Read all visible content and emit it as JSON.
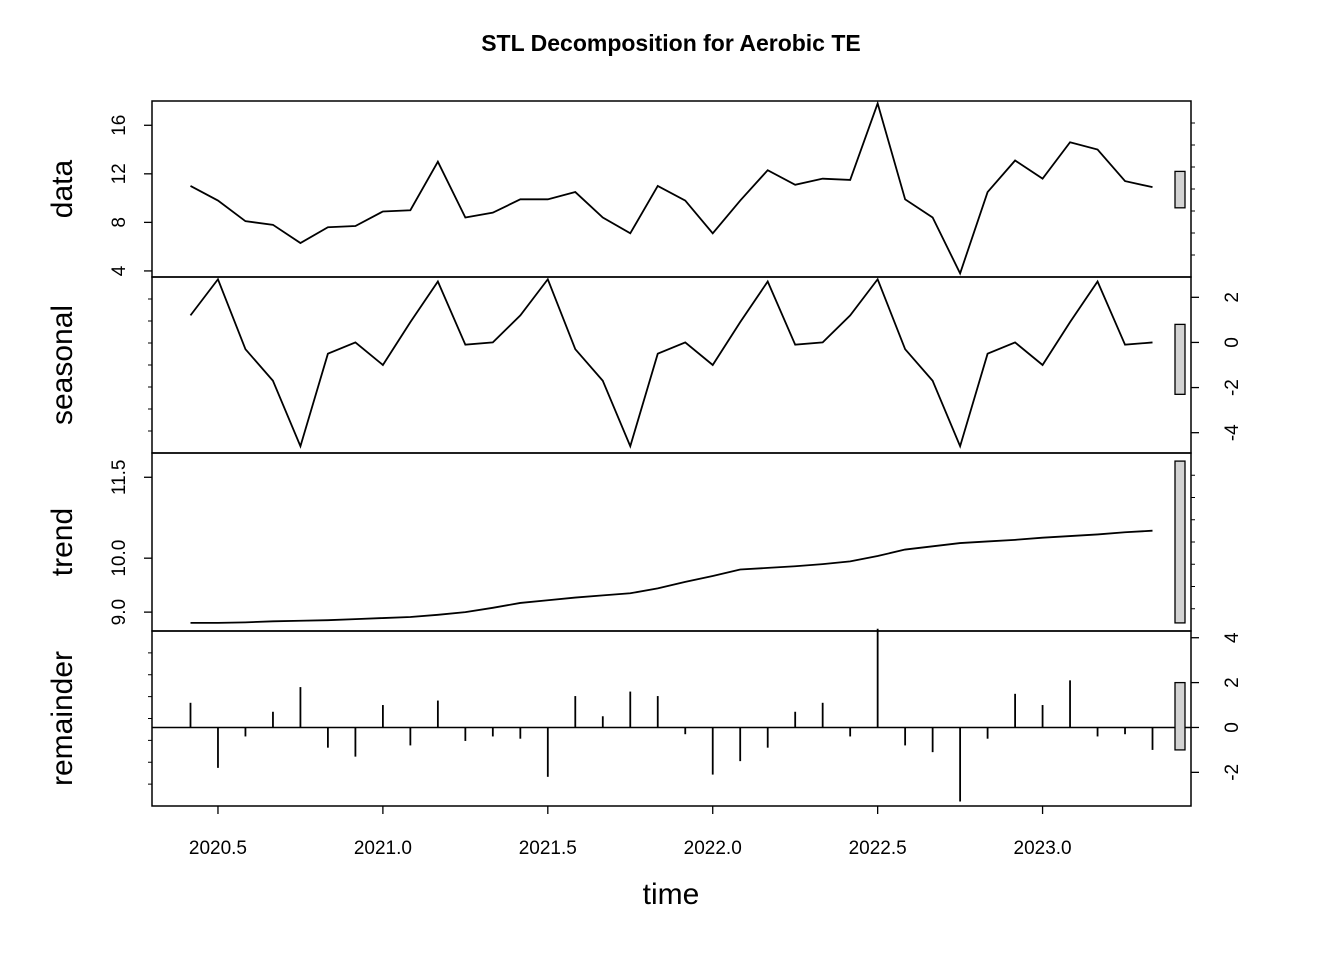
{
  "chart_data": {
    "type": "line",
    "title": "STL Decomposition for Aerobic TE",
    "xlabel": "time",
    "x_ticks": [
      "2020.5",
      "2021.0",
      "2021.5",
      "2022.0",
      "2022.5",
      "2023.0"
    ],
    "x_tick_values": [
      2020.5,
      2021.0,
      2021.5,
      2022.0,
      2022.5,
      2023.0
    ],
    "xlim": [
      2020.3,
      2023.45
    ],
    "x": [
      2020.4167,
      2020.5,
      2020.5833,
      2020.6667,
      2020.75,
      2020.8333,
      2020.9167,
      2021.0,
      2021.0833,
      2021.1667,
      2021.25,
      2021.3333,
      2021.4167,
      2021.5,
      2021.5833,
      2021.6667,
      2021.75,
      2021.8333,
      2021.9167,
      2022.0,
      2022.0833,
      2022.1667,
      2022.25,
      2022.3333,
      2022.4167,
      2022.5,
      2022.5833,
      2022.6667,
      2022.75,
      2022.8333,
      2022.9167,
      2023.0,
      2023.0833,
      2023.1667,
      2023.25,
      2023.3333
    ],
    "panels": [
      {
        "name": "data",
        "style": "line",
        "ylim": [
          3.5,
          18.0
        ],
        "y_ticks": [
          "4",
          "8",
          "12",
          "16"
        ],
        "y_tick_values": [
          4,
          8,
          12,
          16
        ],
        "tick_side": "left",
        "bar_range": [
          9.2,
          12.2
        ],
        "values": [
          11.0,
          9.8,
          8.1,
          7.8,
          6.3,
          7.6,
          7.7,
          8.9,
          9.0,
          13.0,
          8.4,
          8.8,
          9.9,
          9.9,
          10.5,
          8.4,
          7.1,
          11.0,
          9.8,
          7.1,
          9.8,
          12.3,
          11.1,
          11.6,
          11.5,
          17.8,
          9.9,
          8.4,
          3.8,
          10.5,
          13.1,
          11.6,
          14.6,
          14.0,
          11.4,
          10.9
        ]
      },
      {
        "name": "seasonal",
        "style": "line",
        "ylim": [
          -4.9,
          2.9
        ],
        "y_ticks": [
          "-4",
          "-2",
          "0",
          "2"
        ],
        "y_tick_values": [
          -4,
          -2,
          0,
          2
        ],
        "tick_side": "right",
        "bar_range": [
          -2.3,
          0.8
        ],
        "values": [
          1.2,
          2.8,
          -0.3,
          -1.7,
          -4.6,
          -0.5,
          0.0,
          -1.0,
          0.9,
          2.7,
          -0.1,
          0.0,
          1.2,
          2.8,
          -0.3,
          -1.7,
          -4.6,
          -0.5,
          0.0,
          -1.0,
          0.9,
          2.7,
          -0.1,
          0.0,
          1.2,
          2.8,
          -0.3,
          -1.7,
          -4.6,
          -0.5,
          0.0,
          -1.0,
          0.9,
          2.7,
          -0.1,
          0.0
        ]
      },
      {
        "name": "trend",
        "style": "line",
        "ylim": [
          8.65,
          11.95
        ],
        "y_ticks": [
          "9.0",
          "10.0",
          "11.5"
        ],
        "y_tick_values": [
          9.0,
          10.0,
          11.5
        ],
        "tick_side": "left",
        "bar_range": [
          8.8,
          11.8
        ],
        "values": [
          8.8,
          8.8,
          8.81,
          8.83,
          8.84,
          8.85,
          8.87,
          8.89,
          8.91,
          8.95,
          9.0,
          9.08,
          9.17,
          9.22,
          9.27,
          9.31,
          9.35,
          9.44,
          9.56,
          9.67,
          9.79,
          9.82,
          9.85,
          9.89,
          9.94,
          10.04,
          10.16,
          10.22,
          10.28,
          10.31,
          10.34,
          10.38,
          10.41,
          10.44,
          10.48,
          10.51
        ]
      },
      {
        "name": "remainder",
        "style": "spike",
        "ylim": [
          -3.5,
          4.3
        ],
        "y_ticks": [
          "-2",
          "0",
          "2",
          "4"
        ],
        "y_tick_values": [
          -2,
          0,
          2,
          4
        ],
        "tick_side": "right",
        "bar_range": [
          -1.0,
          2.0
        ],
        "values": [
          1.1,
          -1.8,
          -0.4,
          0.7,
          1.8,
          -0.9,
          -1.3,
          1.0,
          -0.8,
          1.2,
          -0.6,
          -0.4,
          -0.5,
          -2.2,
          1.4,
          0.5,
          1.6,
          1.4,
          -0.3,
          -2.1,
          -1.5,
          -0.9,
          0.7,
          1.1,
          -0.4,
          4.4,
          -0.8,
          -1.1,
          -3.3,
          -0.5,
          1.5,
          1.0,
          2.1,
          -0.4,
          -0.3,
          -1.0
        ]
      }
    ]
  }
}
